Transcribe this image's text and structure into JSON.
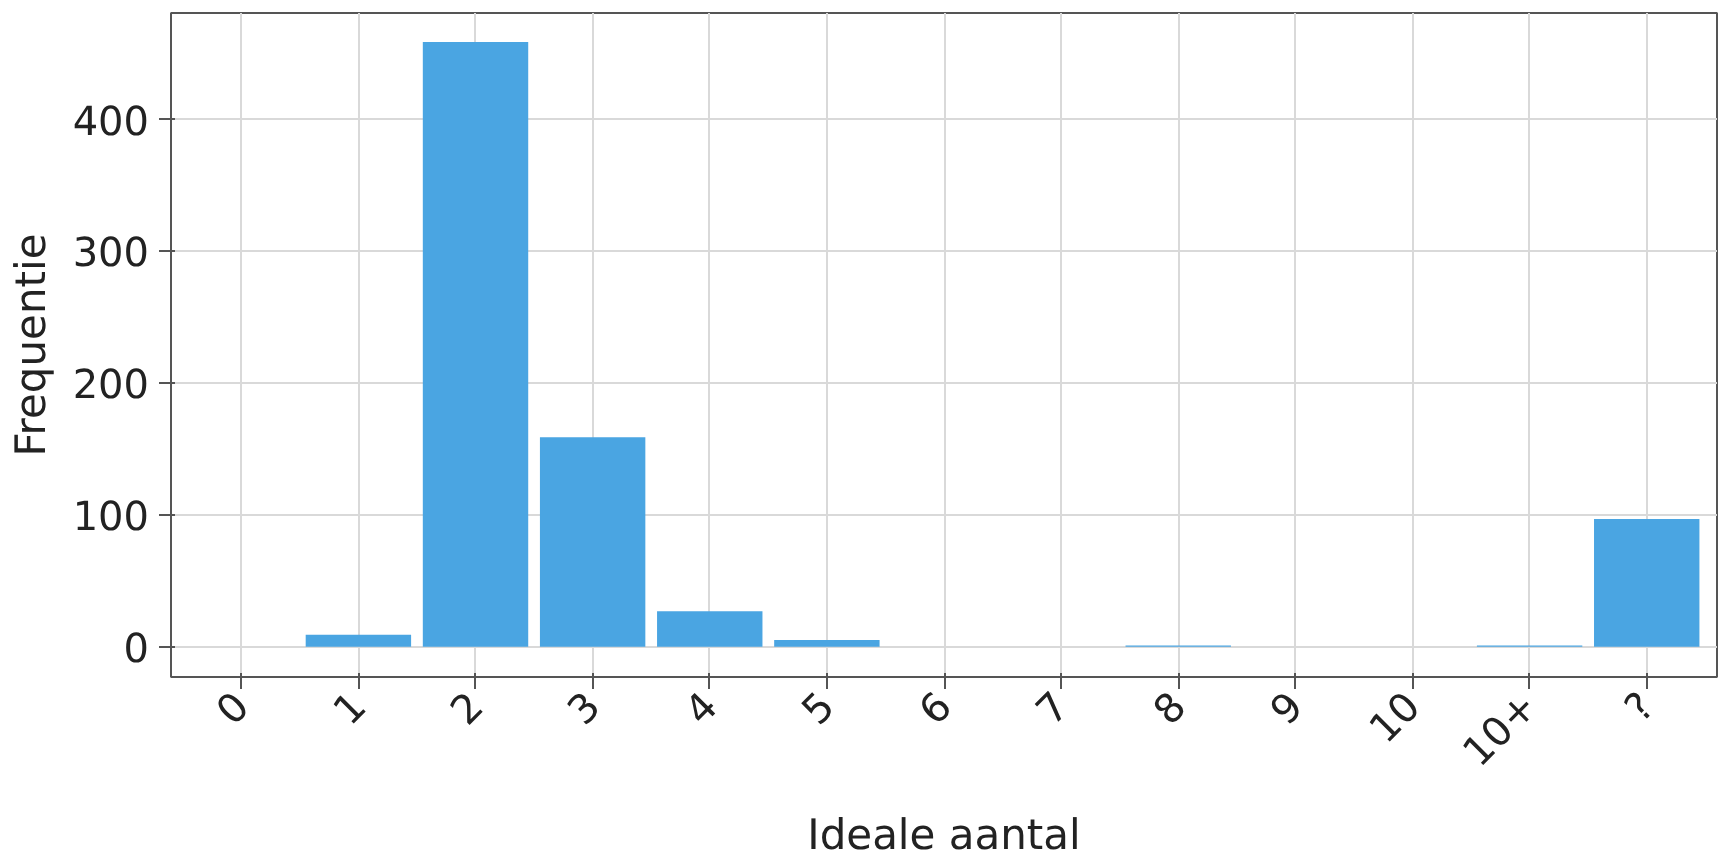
{
  "chart_data": {
    "type": "bar",
    "xlabel": "Ideale aantal",
    "ylabel": "Frequentie",
    "categories": [
      "0",
      "1",
      "2",
      "3",
      "4",
      "5",
      "6",
      "7",
      "8",
      "9",
      "10",
      "10+",
      "?"
    ],
    "values": [
      0,
      9,
      459,
      159,
      27,
      5,
      0,
      0,
      1,
      0,
      0,
      1,
      97
    ],
    "color": "#4aa5e2",
    "ylim": [
      -23,
      481
    ],
    "yticks": [
      0,
      100,
      200,
      300,
      400
    ],
    "grid": true
  }
}
